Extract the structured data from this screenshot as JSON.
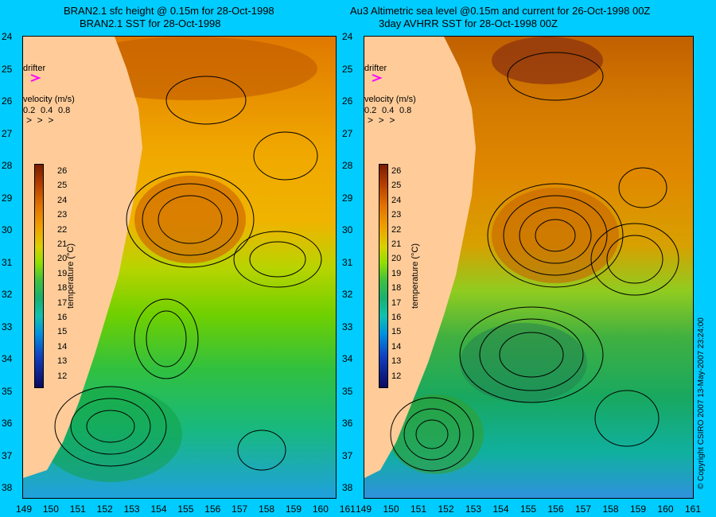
{
  "left_panel": {
    "title_line1": "BRAN2.1 sfc height @ 0.15m for 28-Oct-1998",
    "title_line2": "BRAN2.1 SST for 28-Oct-1998"
  },
  "right_panel": {
    "title_line1": "Au3 Altimetric sea level  @0.15m and current for 26-Oct-1998 00Z",
    "title_line2": "3day AVHRR SST for 28-Oct-1998 00Z"
  },
  "latitude_ticks": [
    "24",
    "25",
    "26",
    "27",
    "28",
    "29",
    "30",
    "31",
    "32",
    "33",
    "34",
    "35",
    "36",
    "37",
    "38"
  ],
  "longitude_ticks": [
    "149",
    "150",
    "151",
    "152",
    "153",
    "154",
    "155",
    "156",
    "157",
    "158",
    "159",
    "160",
    "161"
  ],
  "legend": {
    "drifter_label": "drifter",
    "velocity_label": "velocity (m/s)",
    "velocity_values": [
      "0.2",
      "0.4",
      "0.8"
    ]
  },
  "colorbar": {
    "label": "temperature (°C)",
    "ticks": [
      "26",
      "25",
      "24",
      "23",
      "22",
      "21",
      "20",
      "19",
      "18",
      "17",
      "16",
      "15",
      "14",
      "13",
      "12"
    ]
  },
  "copyright": "© Copyright CSIRO 2007   13-May-2007 23:24:00",
  "colors": {
    "background": "#00ccff",
    "land": "#ffcc99",
    "drifter": "#ff00ff"
  }
}
